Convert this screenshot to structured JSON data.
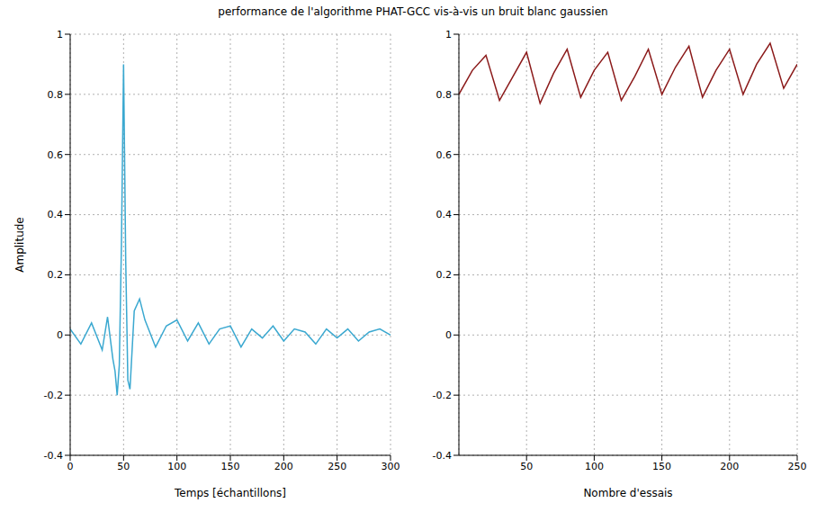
{
  "chart_data": [
    {
      "type": "line",
      "title": "performance de l'algorithme PHAT-GCC vis-à-vis un bruit blanc gaussien",
      "x_label": "Temps [échantillons]",
      "y_label": "Amplitude",
      "x": [
        0,
        10,
        20,
        30,
        35,
        40,
        42,
        44,
        46,
        48,
        50,
        52,
        54,
        56,
        58,
        60,
        65,
        70,
        80,
        90,
        100,
        110,
        120,
        130,
        140,
        150,
        160,
        170,
        180,
        190,
        200,
        210,
        220,
        230,
        240,
        250,
        260,
        270,
        280,
        290,
        300
      ],
      "values": [
        0.02,
        -0.03,
        0.04,
        -0.05,
        0.06,
        -0.08,
        -0.12,
        -0.2,
        -0.1,
        0.3,
        0.9,
        0.25,
        -0.15,
        -0.18,
        -0.05,
        0.08,
        0.12,
        0.05,
        -0.04,
        0.03,
        0.05,
        -0.02,
        0.04,
        -0.03,
        0.02,
        0.03,
        -0.04,
        0.02,
        -0.01,
        0.03,
        -0.02,
        0.02,
        0.01,
        -0.03,
        0.02,
        -0.01,
        0.02,
        -0.02,
        0.01,
        0.02,
        0.0
      ],
      "color": "#3aa8d0",
      "xlim": [
        0,
        300
      ],
      "xticks": [
        0,
        50,
        100,
        150,
        200,
        250,
        300
      ],
      "ylim": [
        -0.4,
        1
      ],
      "yticks": [
        -0.4,
        -0.2,
        0,
        0.2,
        0.4,
        0.6,
        0.8,
        1
      ],
      "grid": true
    },
    {
      "type": "line",
      "x_label": "Nombre d'essais",
      "x": [
        0,
        10,
        20,
        30,
        40,
        50,
        60,
        70,
        80,
        90,
        100,
        110,
        120,
        130,
        140,
        150,
        160,
        170,
        180,
        190,
        200,
        210,
        220,
        230,
        240,
        250
      ],
      "values": [
        0.8,
        0.88,
        0.93,
        0.78,
        0.86,
        0.94,
        0.77,
        0.87,
        0.95,
        0.79,
        0.88,
        0.94,
        0.78,
        0.86,
        0.95,
        0.8,
        0.89,
        0.96,
        0.79,
        0.88,
        0.95,
        0.8,
        0.9,
        0.97,
        0.82,
        0.9
      ],
      "color": "#8b1a1a",
      "xlim": [
        0,
        250
      ],
      "xticks": [
        50,
        100,
        150,
        200,
        250
      ],
      "ylim": [
        -0.4,
        1
      ],
      "yticks": [
        -0.4,
        -0.2,
        0,
        0.2,
        0.4,
        0.6,
        0.8,
        1
      ],
      "grid": true
    }
  ]
}
